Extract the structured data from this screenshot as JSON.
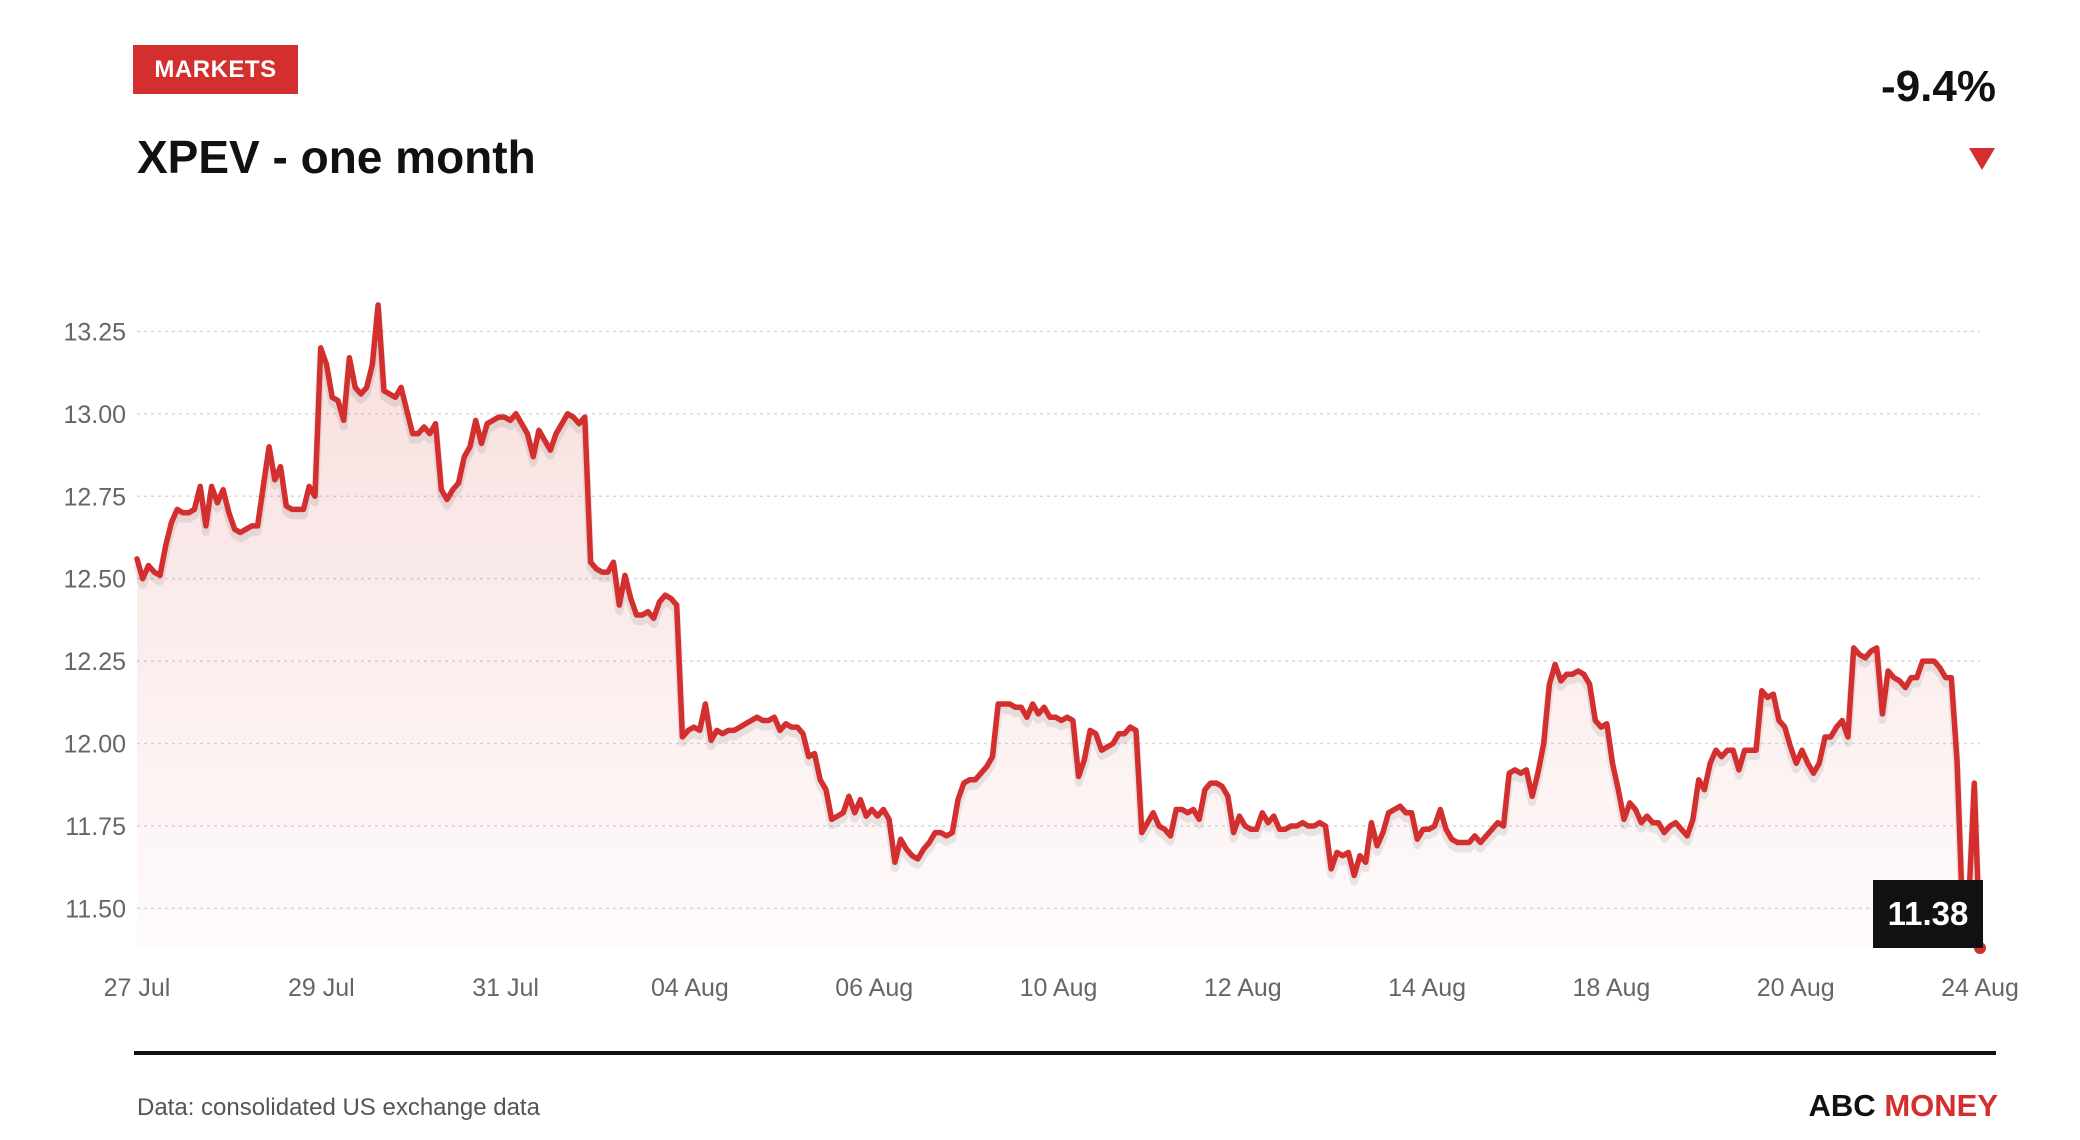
{
  "header": {
    "badge": "MARKETS",
    "title": "XPEV - one month",
    "change": "-9.4%"
  },
  "footer": {
    "source": "Data: consolidated US exchange data",
    "brand_part1": "ABC",
    "brand_part2": "MONEY"
  },
  "colors": {
    "accent": "#d32f2f",
    "line": "#d32f2f",
    "grid": "#d9d9d9",
    "axis_text": "#666666",
    "label_bg": "#111111"
  },
  "chart_data": {
    "type": "area",
    "title": "XPEV - one month",
    "xlabel": "",
    "ylabel": "",
    "ylim": [
      11.38,
      13.33
    ],
    "yticks": [
      11.5,
      11.75,
      12.0,
      12.25,
      12.5,
      12.75,
      13.0,
      13.25
    ],
    "ytick_labels": [
      "11.50",
      "11.75",
      "12.00",
      "12.25",
      "12.50",
      "12.75",
      "13.00",
      "13.25"
    ],
    "xtick_labels": [
      "27 Jul",
      "29 Jul",
      "31 Jul",
      "04 Aug",
      "06 Aug",
      "10 Aug",
      "12 Aug",
      "14 Aug",
      "18 Aug",
      "20 Aug",
      "24 Aug"
    ],
    "grid": true,
    "last_value_label": "11.38",
    "series": [
      {
        "values": [
          12.56,
          12.5,
          12.54,
          12.52,
          12.51,
          12.6,
          12.67,
          12.71,
          12.7,
          12.7,
          12.71,
          12.78,
          12.66,
          12.78,
          12.73,
          12.77,
          12.7,
          12.65,
          12.64,
          12.65,
          12.66,
          12.66,
          12.78,
          12.9,
          12.8,
          12.84,
          12.72,
          12.71,
          12.71,
          12.71,
          12.78,
          12.75,
          13.2,
          13.15,
          13.05,
          13.04,
          12.98,
          13.17,
          13.08,
          13.06,
          13.08,
          13.15,
          13.33,
          13.07,
          13.06,
          13.05,
          13.08,
          13.01,
          12.94,
          12.94,
          12.96,
          12.94,
          12.97,
          12.77,
          12.74,
          12.77,
          12.79,
          12.87,
          12.9,
          12.98,
          12.91,
          12.97,
          12.98,
          12.99,
          12.99,
          12.98,
          13.0,
          12.97,
          12.94,
          12.87,
          12.95,
          12.92,
          12.89,
          12.94,
          12.97,
          13.0,
          12.99,
          12.97,
          12.99,
          12.55,
          12.53,
          12.52,
          12.52,
          12.55,
          12.42,
          12.51,
          12.44,
          12.39,
          12.39,
          12.4,
          12.38,
          12.43,
          12.45,
          12.44,
          12.42,
          12.02,
          12.04,
          12.05,
          12.04,
          12.12,
          12.01,
          12.04,
          12.03,
          12.04,
          12.04,
          12.05,
          12.06,
          12.07,
          12.08,
          12.07,
          12.07,
          12.08,
          12.04,
          12.06,
          12.05,
          12.05,
          12.03,
          11.96,
          11.97,
          11.89,
          11.86,
          11.77,
          11.78,
          11.79,
          11.84,
          11.79,
          11.83,
          11.78,
          11.8,
          11.78,
          11.8,
          11.77,
          11.64,
          11.71,
          11.68,
          11.66,
          11.65,
          11.68,
          11.7,
          11.73,
          11.73,
          11.72,
          11.73,
          11.83,
          11.88,
          11.89,
          11.89,
          11.91,
          11.93,
          11.96,
          12.12,
          12.12,
          12.12,
          12.11,
          12.11,
          12.08,
          12.12,
          12.09,
          12.11,
          12.08,
          12.08,
          12.07,
          12.08,
          12.07,
          11.9,
          11.95,
          12.04,
          12.03,
          11.98,
          11.99,
          12.0,
          12.03,
          12.03,
          12.05,
          12.04,
          11.73,
          11.76,
          11.79,
          11.75,
          11.74,
          11.72,
          11.8,
          11.8,
          11.79,
          11.8,
          11.77,
          11.86,
          11.88,
          11.88,
          11.87,
          11.84,
          11.73,
          11.78,
          11.75,
          11.74,
          11.74,
          11.79,
          11.76,
          11.78,
          11.74,
          11.74,
          11.75,
          11.75,
          11.76,
          11.75,
          11.75,
          11.76,
          11.75,
          11.62,
          11.67,
          11.66,
          11.67,
          11.6,
          11.66,
          11.64,
          11.76,
          11.69,
          11.73,
          11.79,
          11.8,
          11.81,
          11.79,
          11.79,
          11.71,
          11.74,
          11.74,
          11.75,
          11.8,
          11.74,
          11.71,
          11.7,
          11.7,
          11.7,
          11.72,
          11.7,
          11.72,
          11.74,
          11.76,
          11.75,
          11.91,
          11.92,
          11.91,
          11.92,
          11.84,
          11.91,
          12.0,
          12.18,
          12.24,
          12.19,
          12.21,
          12.21,
          12.22,
          12.21,
          12.18,
          12.07,
          12.05,
          12.06,
          11.94,
          11.86,
          11.77,
          11.82,
          11.8,
          11.76,
          11.78,
          11.76,
          11.76,
          11.73,
          11.75,
          11.76,
          11.74,
          11.72,
          11.77,
          11.89,
          11.86,
          11.94,
          11.98,
          11.96,
          11.98,
          11.98,
          11.92,
          11.98,
          11.98,
          11.98,
          12.16,
          12.14,
          12.15,
          12.07,
          12.05,
          11.99,
          11.94,
          11.98,
          11.94,
          11.91,
          11.94,
          12.02,
          12.02,
          12.05,
          12.07,
          12.02,
          12.29,
          12.27,
          12.26,
          12.28,
          12.29,
          12.09,
          12.22,
          12.2,
          12.19,
          12.17,
          12.2,
          12.2,
          12.25,
          12.25,
          12.25,
          12.23,
          12.2,
          12.2,
          11.95,
          11.46,
          11.5,
          11.88,
          11.38
        ]
      }
    ]
  }
}
